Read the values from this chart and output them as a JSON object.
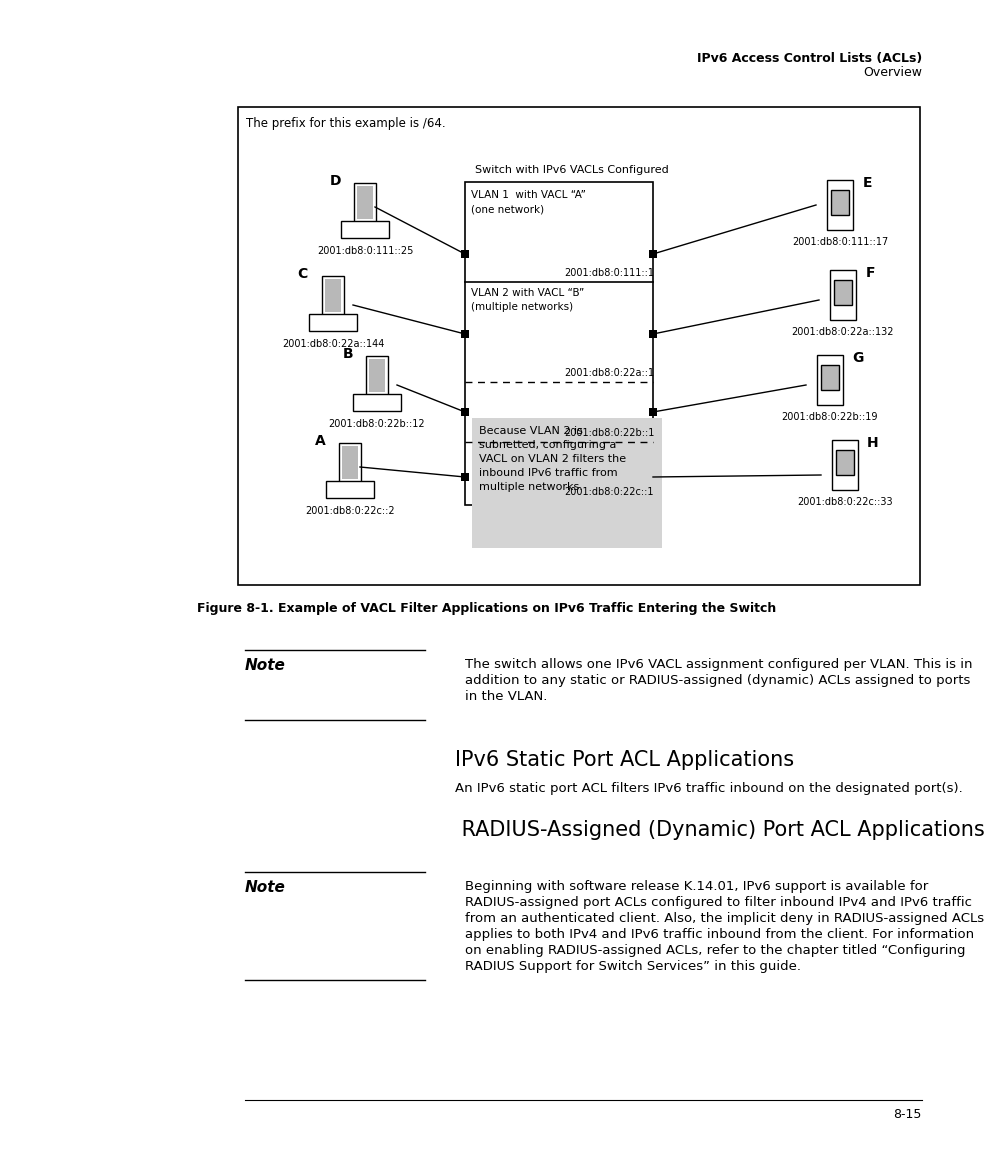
{
  "header_line1": "IPv6 Access Control Lists (ACLs)",
  "header_line2": "Overview",
  "figure_caption": "Figure 8-1. Example of VACL Filter Applications on IPv6 Traffic Entering the Switch",
  "diagram_prefix_note": "The prefix for this example is /64.",
  "diagram_switch_label": "Switch with IPv6 VACLs Configured",
  "gray_box_text": "Because VLAN 2 is\nsubnetted, configuring a\nVACL on VLAN 2 filters the\ninbound IPv6 traffic from\nmultiple networks.",
  "note1_label": "Note",
  "note1_lines": [
    "The switch allows one IPv6 VACL assignment configured per VLAN. This is in",
    "addition to any static or RADIUS-assigned (dynamic) ACLs assigned to ports",
    "in the VLAN."
  ],
  "section1_title": "IPv6 Static Port ACL Applications",
  "section1_body": "An IPv6 static port ACL filters IPv6 traffic inbound on the designated port(s).",
  "section2_title": " RADIUS-Assigned (Dynamic) Port ACL Applications",
  "note2_label": "Note",
  "note2_lines": [
    "Beginning with software release K.14.01, IPv6 support is available for",
    "RADIUS-assigned port ACLs configured to filter inbound IPv4 and IPv6 traffic",
    "from an authenticated client. Also, the implicit deny in RADIUS-assigned ACLs",
    "applies to both IPv4 and IPv6 traffic inbound from the client. For information",
    "on enabling RADIUS-assigned ACLs, refer to the chapter titled “Configuring",
    "RADIUS Support for Switch Services” in this guide."
  ],
  "page_number": "8-15",
  "bg_color": "#ffffff"
}
